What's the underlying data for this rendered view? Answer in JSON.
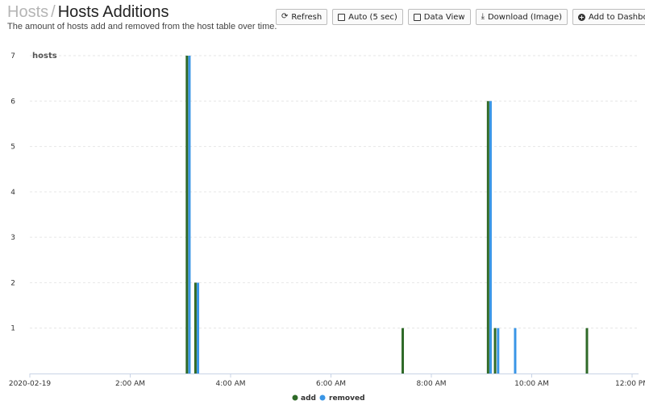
{
  "header": {
    "parent": "Hosts",
    "separator": "/",
    "title": "Hosts Additions",
    "subtitle": "The amount of hosts add and removed from the host table over time."
  },
  "toolbar": {
    "refresh_label": "Refresh",
    "refresh_icon": "refresh-icon",
    "auto_label": "Auto (5 sec)",
    "data_view_label": "Data View",
    "download_label": "Download (Image)",
    "download_icon": "download-icon",
    "add_dashboard_label": "Add to Dashboard"
  },
  "colors": {
    "add": "#2f6a28",
    "removed": "#3a96e6",
    "grid": "#e6e6e6",
    "axis": "#c8d3e6"
  },
  "chart_data": {
    "type": "bar",
    "series_label": "hosts",
    "ylim": [
      0,
      7
    ],
    "y_ticks": [
      1,
      2,
      3,
      4,
      5,
      6,
      7
    ],
    "x_range_hours": [
      0,
      12.5
    ],
    "x_ticks": [
      {
        "h": 0,
        "label": "2020-02-19"
      },
      {
        "h": 2,
        "label": "2:00 AM"
      },
      {
        "h": 4,
        "label": "4:00 AM"
      },
      {
        "h": 6,
        "label": "6:00 AM"
      },
      {
        "h": 8,
        "label": "8:00 AM"
      },
      {
        "h": 10,
        "label": "10:00 AM"
      },
      {
        "h": 12,
        "label": "12:00 PM"
      }
    ],
    "series": [
      {
        "name": "add",
        "points": [
          {
            "h": 3.13,
            "value": 7
          },
          {
            "h": 3.3,
            "value": 2
          },
          {
            "h": 7.43,
            "value": 1
          },
          {
            "h": 9.13,
            "value": 6
          },
          {
            "h": 9.27,
            "value": 1
          },
          {
            "h": 11.1,
            "value": 1
          }
        ]
      },
      {
        "name": "removed",
        "points": [
          {
            "h": 3.18,
            "value": 7
          },
          {
            "h": 3.35,
            "value": 2
          },
          {
            "h": 9.18,
            "value": 6
          },
          {
            "h": 9.33,
            "value": 1
          },
          {
            "h": 9.67,
            "value": 1
          }
        ]
      }
    ]
  }
}
